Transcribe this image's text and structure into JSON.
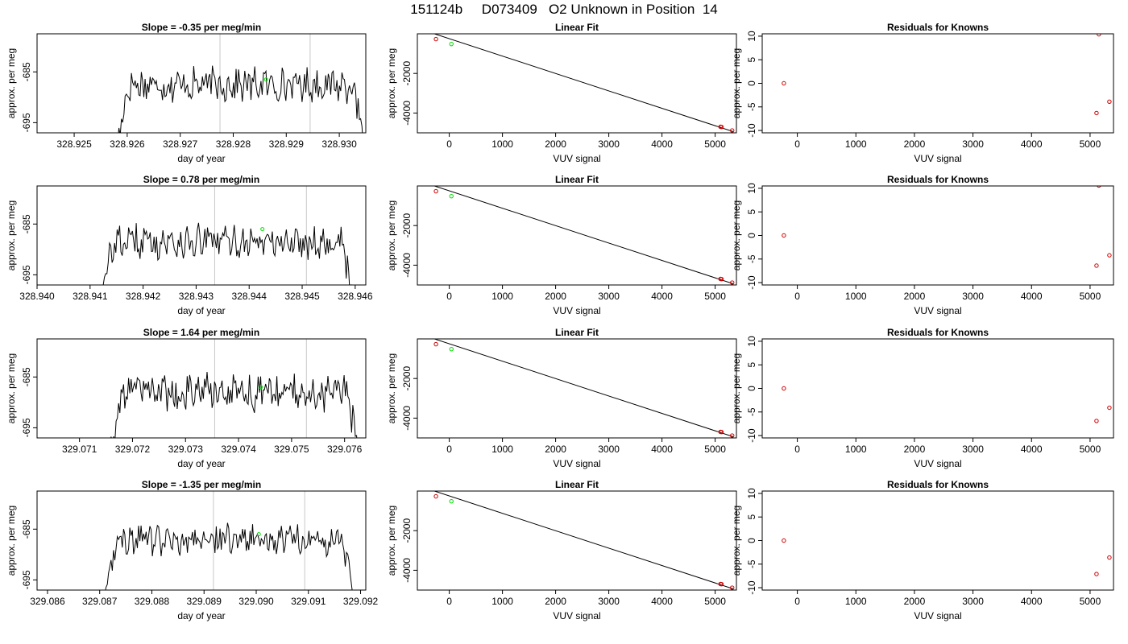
{
  "title": "151124b     D073409   O2 Unknown in Position  14",
  "colors": {
    "line": "#000000",
    "known_point": "#cc0000",
    "unknown_point": "#00dd00",
    "marker_line": "#c8c8c8"
  },
  "chart_data": [
    {
      "type": "line",
      "row": 0,
      "panel": "timeseries",
      "title": "Slope =  -0.35  per meg/min",
      "xlabel": "day of year",
      "ylabel": "approx. per meg",
      "xlim": [
        328.9243,
        328.9305
      ],
      "ylim": [
        -697,
        -677.5
      ],
      "xticks": [
        328.925,
        328.926,
        328.927,
        328.928,
        328.929,
        328.93
      ],
      "xtick_labels": [
        "328.925",
        "328.926",
        "328.927",
        "328.928",
        "328.929",
        "328.930"
      ],
      "yticks": [
        -685,
        -695
      ],
      "ytick_labels": [
        "-685",
        "-695"
      ],
      "signal_start": 328.92575,
      "signal_end": 328.93045,
      "level": -687.5,
      "amplitude": 1.6,
      "markers_x": [
        328.92775,
        328.92945
      ],
      "highlight_point": {
        "x": 328.92862,
        "y": -686.5
      }
    },
    {
      "type": "scatter",
      "row": 0,
      "panel": "fit",
      "title": "Linear Fit",
      "xlabel": "VUV signal",
      "ylabel": "approx. per meg",
      "xlim": [
        -600,
        5400
      ],
      "ylim": [
        -5000,
        0
      ],
      "xticks": [
        0,
        1000,
        2000,
        3000,
        4000,
        5000
      ],
      "xtick_labels": [
        "0",
        "1000",
        "2000",
        "3000",
        "4000",
        "5000"
      ],
      "yticks": [
        -2000,
        -4000
      ],
      "ytick_labels": [
        "-2000",
        "-4000"
      ],
      "fit_line": {
        "x": [
          -520,
          5340
        ],
        "y": [
          212,
          -4940
        ]
      },
      "known_points": [
        {
          "x": -250,
          "y": -268
        },
        {
          "x": 5100,
          "y": -4694
        },
        {
          "x": 5120,
          "y": -4702
        },
        {
          "x": 5320,
          "y": -4880
        }
      ],
      "unknown_point": {
        "x": 40,
        "y": -515
      }
    },
    {
      "type": "scatter",
      "row": 0,
      "panel": "residuals",
      "title": "Residuals for Knowns",
      "xlabel": "VUV signal",
      "ylabel": "approx. per meg",
      "xlim": [
        -600,
        5400
      ],
      "ylim": [
        -10.5,
        10.5
      ],
      "xticks": [
        0,
        1000,
        2000,
        3000,
        4000,
        5000
      ],
      "xtick_labels": [
        "0",
        "1000",
        "2000",
        "3000",
        "4000",
        "5000"
      ],
      "yticks": [
        10,
        5,
        0,
        -5,
        -10
      ],
      "ytick_labels": [
        "10",
        "5",
        "0",
        "-5",
        "-10"
      ],
      "points": [
        {
          "x": -230,
          "y": 0
        },
        {
          "x": 5150,
          "y": 10.4
        },
        {
          "x": 5110,
          "y": -6.3
        },
        {
          "x": 5330,
          "y": -3.9
        }
      ]
    },
    {
      "type": "line",
      "row": 1,
      "panel": "timeseries",
      "title": "Slope =  0.78  per meg/min",
      "xlabel": "day of year",
      "ylabel": "approx. per meg",
      "xlim": [
        328.94,
        328.9462
      ],
      "ylim": [
        -697,
        -677.5
      ],
      "xticks": [
        328.94,
        328.941,
        328.942,
        328.943,
        328.944,
        328.945,
        328.946
      ],
      "xtick_labels": [
        "328.940",
        "328.941",
        "328.942",
        "328.943",
        "328.944",
        "328.945",
        "328.946"
      ],
      "yticks": [
        -685,
        -695
      ],
      "ytick_labels": [
        "-685",
        "-695"
      ],
      "signal_start": 328.94115,
      "signal_end": 328.94595,
      "level": -688.5,
      "amplitude": 1.6,
      "markers_x": [
        328.94335,
        328.94508
      ],
      "highlight_point": {
        "x": 328.94425,
        "y": -686
      }
    },
    {
      "type": "scatter",
      "row": 1,
      "panel": "fit",
      "title": "Linear Fit",
      "xlabel": "VUV signal",
      "ylabel": "approx. per meg",
      "xlim": [
        -600,
        5400
      ],
      "ylim": [
        -5000,
        0
      ],
      "xticks": [
        0,
        1000,
        2000,
        3000,
        4000,
        5000
      ],
      "xtick_labels": [
        "0",
        "1000",
        "2000",
        "3000",
        "4000",
        "5000"
      ],
      "yticks": [
        -2000,
        -4000
      ],
      "ytick_labels": [
        "-2000",
        "-4000"
      ],
      "fit_line": {
        "x": [
          -520,
          5340
        ],
        "y": [
          212,
          -4940
        ]
      },
      "known_points": [
        {
          "x": -250,
          "y": -268
        },
        {
          "x": 5100,
          "y": -4694
        },
        {
          "x": 5120,
          "y": -4702
        },
        {
          "x": 5320,
          "y": -4880
        }
      ],
      "unknown_point": {
        "x": 40,
        "y": -515
      }
    },
    {
      "type": "scatter",
      "row": 1,
      "panel": "residuals",
      "title": "Residuals for Knowns",
      "xlabel": "VUV signal",
      "ylabel": "approx. per meg",
      "xlim": [
        -600,
        5400
      ],
      "ylim": [
        -10.5,
        10.5
      ],
      "xticks": [
        0,
        1000,
        2000,
        3000,
        4000,
        5000
      ],
      "xtick_labels": [
        "0",
        "1000",
        "2000",
        "3000",
        "4000",
        "5000"
      ],
      "yticks": [
        10,
        5,
        0,
        -5,
        -10
      ],
      "ytick_labels": [
        "10",
        "5",
        "0",
        "-5",
        "-10"
      ],
      "points": [
        {
          "x": -230,
          "y": 0
        },
        {
          "x": 5150,
          "y": 10.6
        },
        {
          "x": 5110,
          "y": -6.4
        },
        {
          "x": 5330,
          "y": -4.2
        }
      ]
    },
    {
      "type": "line",
      "row": 2,
      "panel": "timeseries",
      "title": "Slope =  1.64  per meg/min",
      "xlabel": "day of year",
      "ylabel": "approx. per meg",
      "xlim": [
        329.0702,
        329.0764
      ],
      "ylim": [
        -697,
        -677.5
      ],
      "xticks": [
        329.071,
        329.072,
        329.073,
        329.074,
        329.075,
        329.076
      ],
      "xtick_labels": [
        "329.071",
        "329.072",
        "329.073",
        "329.074",
        "329.075",
        "329.076"
      ],
      "yticks": [
        -685,
        -695
      ],
      "ytick_labels": [
        "-685",
        "-695"
      ],
      "signal_start": 329.07155,
      "signal_end": 329.07625,
      "level": -688,
      "amplitude": 1.7,
      "markers_x": [
        329.07355,
        329.07528
      ],
      "highlight_point": {
        "x": 329.07442,
        "y": -687
      }
    },
    {
      "type": "scatter",
      "row": 2,
      "panel": "fit",
      "title": "Linear Fit",
      "xlabel": "VUV signal",
      "ylabel": "approx. per meg",
      "xlim": [
        -600,
        5400
      ],
      "ylim": [
        -5000,
        0
      ],
      "xticks": [
        0,
        1000,
        2000,
        3000,
        4000,
        5000
      ],
      "xtick_labels": [
        "0",
        "1000",
        "2000",
        "3000",
        "4000",
        "5000"
      ],
      "yticks": [
        -2000,
        -4000
      ],
      "ytick_labels": [
        "-2000",
        "-4000"
      ],
      "fit_line": {
        "x": [
          -520,
          5340
        ],
        "y": [
          212,
          -4940
        ]
      },
      "known_points": [
        {
          "x": -250,
          "y": -268
        },
        {
          "x": 5100,
          "y": -4694
        },
        {
          "x": 5120,
          "y": -4702
        },
        {
          "x": 5320,
          "y": -4880
        }
      ],
      "unknown_point": {
        "x": 40,
        "y": -515
      }
    },
    {
      "type": "scatter",
      "row": 2,
      "panel": "residuals",
      "title": "Residuals for Knowns",
      "xlabel": "VUV signal",
      "ylabel": "approx. per meg",
      "xlim": [
        -600,
        5400
      ],
      "ylim": [
        -10.5,
        10.5
      ],
      "xticks": [
        0,
        1000,
        2000,
        3000,
        4000,
        5000
      ],
      "xtick_labels": [
        "0",
        "1000",
        "2000",
        "3000",
        "4000",
        "5000"
      ],
      "yticks": [
        10,
        5,
        0,
        -5,
        -10
      ],
      "ytick_labels": [
        "10",
        "5",
        "0",
        "-5",
        "-10"
      ],
      "points": [
        {
          "x": -230,
          "y": 0
        },
        {
          "x": 5110,
          "y": -6.9
        },
        {
          "x": 5330,
          "y": -4.1
        }
      ]
    },
    {
      "type": "line",
      "row": 3,
      "panel": "timeseries",
      "title": "Slope =  -1.35  per meg/min",
      "xlabel": "day of year",
      "ylabel": "approx. per meg",
      "xlim": [
        329.0858,
        329.0921
      ],
      "ylim": [
        -697,
        -677.5
      ],
      "xticks": [
        329.086,
        329.087,
        329.088,
        329.089,
        329.09,
        329.091,
        329.092
      ],
      "xtick_labels": [
        "329.086",
        "329.087",
        "329.088",
        "329.089",
        "329.090",
        "329.091",
        "329.092"
      ],
      "yticks": [
        -685,
        -695
      ],
      "ytick_labels": [
        "-685",
        "-695"
      ],
      "signal_start": 329.08705,
      "signal_end": 329.09185,
      "level": -687,
      "amplitude": 1.5,
      "markers_x": [
        329.08918,
        329.09093
      ],
      "highlight_point": {
        "x": 329.09005,
        "y": -686
      }
    },
    {
      "type": "scatter",
      "row": 3,
      "panel": "fit",
      "title": "Linear Fit",
      "xlabel": "VUV signal",
      "ylabel": "approx. per meg",
      "xlim": [
        -600,
        5400
      ],
      "ylim": [
        -5000,
        0
      ],
      "xticks": [
        0,
        1000,
        2000,
        3000,
        4000,
        5000
      ],
      "xtick_labels": [
        "0",
        "1000",
        "2000",
        "3000",
        "4000",
        "5000"
      ],
      "yticks": [
        -2000,
        -4000
      ],
      "ytick_labels": [
        "-2000",
        "-4000"
      ],
      "fit_line": {
        "x": [
          -520,
          5340
        ],
        "y": [
          212,
          -4940
        ]
      },
      "known_points": [
        {
          "x": -250,
          "y": -268
        },
        {
          "x": 5100,
          "y": -4694
        },
        {
          "x": 5120,
          "y": -4702
        },
        {
          "x": 5320,
          "y": -4880
        }
      ],
      "unknown_point": {
        "x": 40,
        "y": -515
      }
    },
    {
      "type": "scatter",
      "row": 3,
      "panel": "residuals",
      "title": "Residuals for Knowns",
      "xlabel": "VUV signal",
      "ylabel": "approx. per meg",
      "xlim": [
        -600,
        5400
      ],
      "ylim": [
        -10.5,
        10.5
      ],
      "xticks": [
        0,
        1000,
        2000,
        3000,
        4000,
        5000
      ],
      "xtick_labels": [
        "0",
        "1000",
        "2000",
        "3000",
        "4000",
        "5000"
      ],
      "yticks": [
        10,
        5,
        0,
        -5,
        -10
      ],
      "ytick_labels": [
        "10",
        "5",
        "0",
        "-5",
        "-10"
      ],
      "points": [
        {
          "x": -230,
          "y": 0
        },
        {
          "x": 5110,
          "y": -7.1
        },
        {
          "x": 5330,
          "y": -3.6
        }
      ]
    }
  ]
}
